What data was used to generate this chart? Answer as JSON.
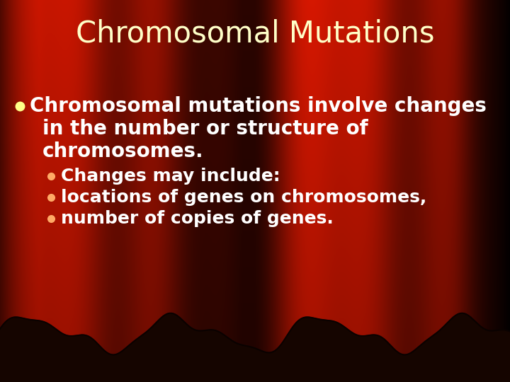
{
  "title": "Chromosomal Mutations",
  "title_color": "#FFFFC8",
  "title_fontsize": 30,
  "bullet1_line1": "Chromosomal mutations involve changes",
  "bullet1_line2": "in the number or structure of",
  "bullet1_line3": "chromosomes.",
  "bullet1_color": "#FFFFFF",
  "bullet1_fontsize": 20,
  "bullet1_dot_color": "#FFFF88",
  "sub_bullets": [
    "Changes may include:",
    "locations of genes on chromosomes,",
    "number of copies of genes."
  ],
  "sub_bullet_color": "#FFFFFF",
  "sub_bullet_fontsize": 18,
  "sub_bullet_dot_color": "#FFAA66",
  "wave_color": "#150500",
  "bg_base_r": 0.42,
  "bg_base_g": 0.04,
  "bg_base_b": 0.0
}
